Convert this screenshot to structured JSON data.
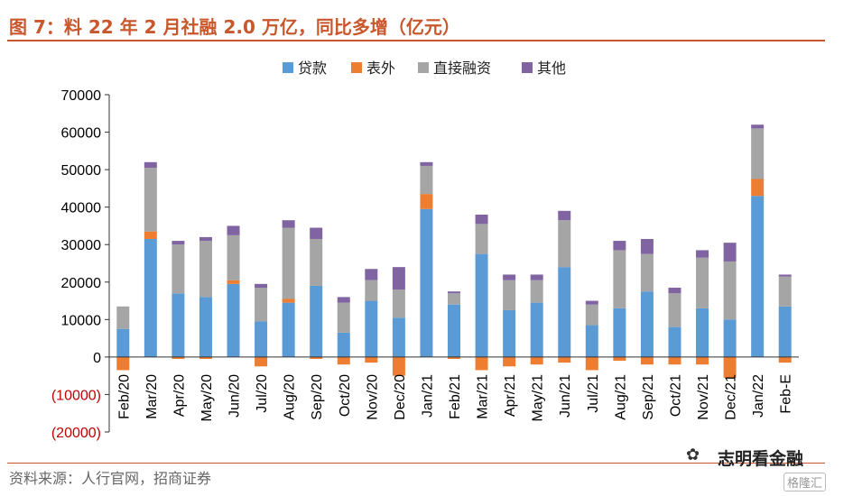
{
  "title": "图 7：料 22 年 2 月社融 2.0 万亿，同比多增（亿元）",
  "source": "资料来源：人行官网，招商证券",
  "watermark": {
    "text": "志明看金融",
    "icon": "wechat-icon",
    "badge": "格隆汇"
  },
  "chart_data": {
    "type": "bar",
    "stacked": true,
    "categories": [
      "Feb/20",
      "Mar/20",
      "Apr/20",
      "May/20",
      "Jun/20",
      "Jul/20",
      "Aug/20",
      "Sep/20",
      "Oct/20",
      "Nov/20",
      "Dec/20",
      "Jan/21",
      "Feb/21",
      "Mar/21",
      "Apr/21",
      "May/21",
      "Jun/21",
      "Jul/21",
      "Aug/21",
      "Sep/21",
      "Oct/21",
      "Nov/21",
      "Dec/21",
      "Jan/22",
      "Feb-E"
    ],
    "series": [
      {
        "name": "贷款",
        "color": "#5b9bd5",
        "values": [
          7500,
          31500,
          17000,
          16000,
          19500,
          9500,
          14500,
          19000,
          6500,
          15000,
          10500,
          39500,
          14000,
          27500,
          12500,
          14500,
          24000,
          8500,
          13000,
          17500,
          8000,
          13000,
          10000,
          43000,
          13500
        ]
      },
      {
        "name": "表外",
        "color": "#ed7d31",
        "values": [
          -3500,
          2000,
          -500,
          -500,
          1000,
          -2500,
          1000,
          -500,
          -2000,
          -1500,
          -5000,
          4000,
          -500,
          -3500,
          -2500,
          -2000,
          -1500,
          -3500,
          -1000,
          -2000,
          -2000,
          -2000,
          -5500,
          4500,
          -1500
        ]
      },
      {
        "name": "直接融资",
        "color": "#a5a5a5",
        "values": [
          6000,
          17000,
          13000,
          15000,
          12000,
          9000,
          19000,
          12500,
          8000,
          5500,
          7500,
          7500,
          3000,
          8000,
          8000,
          6000,
          12500,
          5500,
          15500,
          10000,
          9000,
          13500,
          15500,
          13500,
          8000
        ]
      },
      {
        "name": "其他",
        "color": "#8064a2",
        "values": [
          0,
          1500,
          1000,
          1000,
          2500,
          1000,
          2000,
          3000,
          1500,
          3000,
          6000,
          1000,
          500,
          2500,
          1500,
          1500,
          2500,
          1000,
          2500,
          4000,
          1500,
          2000,
          5000,
          1000,
          500
        ]
      }
    ],
    "yticks": [
      -20000,
      -10000,
      0,
      10000,
      20000,
      30000,
      40000,
      50000,
      60000,
      70000
    ],
    "ytick_labels": [
      "(20000)",
      "(10000)",
      "0",
      "10000",
      "20000",
      "30000",
      "40000",
      "50000",
      "60000",
      "70000"
    ],
    "ylim": [
      -20000,
      70000
    ],
    "negative_tick_color": "#c00000",
    "legend_position": "top-center",
    "grid": false
  }
}
